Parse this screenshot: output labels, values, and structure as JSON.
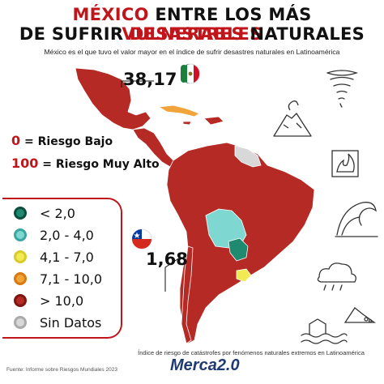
{
  "title": {
    "line1_a": "MÉXICO",
    "line1_b": " ENTRE LOS MÁS ",
    "line1_c": "VULNERABLES",
    "line2_a": "DE SUFRIR ",
    "line2_b": "DESASTRES",
    "line2_c": " NATURALES"
  },
  "subtitle": "México es el que tuvo el valor mayor en el índice de sufrir desastres naturales en Latinoamérica",
  "callouts": {
    "mexico_value": "38,17",
    "chile_value": "1,68"
  },
  "risk_scale": {
    "low_num": "0",
    "low_label": " = Riesgo Bajo",
    "high_num": "100",
    "high_label": " = Riesgo Muy Alto"
  },
  "legend": [
    {
      "label": "< 2,0",
      "color": "#1f8a70",
      "ring": "#0d4f3e"
    },
    {
      "label": "2,0 - 4,0",
      "color": "#7fd7d2",
      "ring": "#3aa6a0"
    },
    {
      "label": "4,1 - 7,0",
      "color": "#f2ea52",
      "ring": "#d8cc2a"
    },
    {
      "label": "7,1 - 10,0",
      "color": "#f2a33a",
      "ring": "#d67a12"
    },
    {
      "label": "> 10,0",
      "color": "#b52a24",
      "ring": "#7e1612"
    },
    {
      "label": "Sin Datos",
      "color": "#d8d8d8",
      "ring": "#aaaaaa"
    }
  ],
  "colors": {
    "accent": "#c0161b",
    "country_fill": "#b52a24",
    "paraguay": "#1f8a70",
    "bolivia": "#7fd7d2",
    "uruguay": "#f2ea52",
    "cuba": "#f2a33a",
    "no_data": "#d8d8d8"
  },
  "caption": "Índice de riesgo de catástrofes por fenómenos naturales extremos en Latinoamérica",
  "source": "Fuente: Informe sobre Riesgos Mundiales 2023",
  "brand": {
    "name": "Merca",
    "version": "2.0"
  },
  "icons": [
    "tornado-icon",
    "volcano-icon",
    "wildfire-icon",
    "wave-icon",
    "storm-icon",
    "landslide-icon",
    "flood-icon"
  ]
}
